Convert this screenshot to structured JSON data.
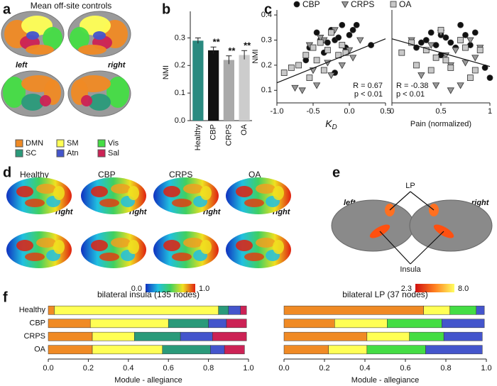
{
  "panel_labels": [
    "a",
    "b",
    "c",
    "d",
    "e",
    "f"
  ],
  "panel_a": {
    "title": "Mean off-site controls",
    "hemispheres": [
      "left",
      "right"
    ],
    "legend": [
      {
        "label": "DMN",
        "color": "#f08a24"
      },
      {
        "label": "SM",
        "color": "#ffff55"
      },
      {
        "label": "Vis",
        "color": "#44dd44"
      },
      {
        "label": "SC",
        "color": "#2a9a7a"
      },
      {
        "label": "Atn",
        "color": "#4455cc"
      },
      {
        "label": "Sal",
        "color": "#cc2255"
      }
    ]
  },
  "panel_d": {
    "groups": [
      "Healthy",
      "CBP",
      "CRPS",
      "OA"
    ],
    "view_label": "right",
    "colorbar": {
      "min": "0.0",
      "max": "1.0"
    }
  },
  "panel_e": {
    "hemispheres": [
      "left",
      "right"
    ],
    "regions": [
      "LP",
      "Insula"
    ],
    "colorbar": {
      "min": "2.3",
      "max": "8.0"
    }
  },
  "chart_data": [
    {
      "type": "bar",
      "ylabel": "NMI",
      "categories": [
        "Healthy",
        "CBP",
        "CRPS",
        "OA"
      ],
      "values": [
        0.29,
        0.255,
        0.22,
        0.238
      ],
      "errors": [
        0.01,
        0.012,
        0.015,
        0.016
      ],
      "colors": [
        "#2a8a80",
        "#111111",
        "#aaaaaa",
        "#cccccc"
      ],
      "significance": [
        null,
        "**",
        "**",
        "**"
      ],
      "ylim": [
        0,
        0.35
      ],
      "yticks": [
        {
          "value": 0,
          "label": "0.0"
        },
        0.1,
        0.2,
        0.3
      ]
    },
    {
      "type": "scatter",
      "ylabel": "NMI",
      "xlabel": {
        "text": "K",
        "subscript": "D"
      },
      "xlim": [
        -1,
        0.5
      ],
      "ylim": [
        0.05,
        0.42
      ],
      "xticks": [
        {
          "value": -1,
          "label": "-1.0"
        },
        -0.5,
        {
          "value": 0,
          "label": "0.0"
        },
        0.5
      ],
      "yticks": [
        0.1,
        0.2,
        0.3,
        0.4
      ],
      "annotations": [
        "R = 0.67",
        "p < 0.01"
      ],
      "annotation_corner": "lower right",
      "fit": {
        "x": [
          -1,
          0.5
        ],
        "y": [
          0.13,
          0.305
        ]
      },
      "series": [
        {
          "name": "CBP",
          "color": "#111111",
          "marker": "circle",
          "x": [
            -0.55,
            -0.45,
            -0.4,
            -0.35,
            -0.3,
            -0.25,
            -0.2,
            -0.15,
            -0.1,
            -0.05,
            0.0,
            0.05,
            0.1,
            0.3,
            -0.6,
            -0.2
          ],
          "values": [
            0.27,
            0.33,
            0.3,
            0.25,
            0.29,
            0.34,
            0.3,
            0.31,
            0.36,
            0.27,
            0.32,
            0.34,
            0.36,
            0.28,
            0.22,
            0.17
          ]
        },
        {
          "name": "CRPS",
          "color": "#999999",
          "marker": "triangle",
          "x": [
            -0.75,
            -0.65,
            -0.55,
            -0.5,
            -0.45,
            -0.35,
            -0.3,
            -0.25,
            -0.2,
            -0.1,
            0.0,
            0.05,
            0.15,
            -0.4
          ],
          "values": [
            0.11,
            0.1,
            0.28,
            0.18,
            0.12,
            0.3,
            0.21,
            0.16,
            0.34,
            0.2,
            0.26,
            0.23,
            0.3,
            0.31
          ]
        },
        {
          "name": "OA",
          "color": "#c8c8c8",
          "marker": "square",
          "x": [
            -0.9,
            -0.8,
            -0.7,
            -0.6,
            -0.5,
            -0.45,
            -0.4,
            -0.3,
            -0.25,
            -0.15,
            -0.1,
            -0.05,
            -0.35,
            -0.55
          ],
          "values": [
            0.17,
            0.19,
            0.2,
            0.24,
            0.27,
            0.22,
            0.29,
            0.26,
            0.33,
            0.24,
            0.28,
            0.25,
            0.18,
            0.15
          ]
        }
      ]
    },
    {
      "type": "scatter",
      "xlabel": {
        "text": "Pain (normalized)"
      },
      "xlim": [
        0,
        1
      ],
      "ylim": [
        0.05,
        0.42
      ],
      "xticks": [
        0,
        0.5,
        1
      ],
      "annotations": [
        "R = -0.38",
        "p < 0.01"
      ],
      "annotation_corner": "lower left",
      "fit": {
        "x": [
          0,
          1
        ],
        "y": [
          0.305,
          0.195
        ]
      },
      "series": [
        {
          "color": "#111111",
          "marker": "circle",
          "x": [
            0.3,
            0.35,
            0.4,
            0.45,
            0.5,
            0.55,
            0.6,
            0.65,
            0.7,
            0.75,
            0.8,
            0.85,
            0.95,
            1.0,
            0.25,
            0.5
          ],
          "values": [
            0.29,
            0.3,
            0.33,
            0.28,
            0.32,
            0.31,
            0.29,
            0.27,
            0.36,
            0.32,
            0.28,
            0.33,
            0.19,
            0.15,
            0.27,
            0.24
          ]
        },
        {
          "color": "#999999",
          "marker": "triangle",
          "x": [
            0.2,
            0.3,
            0.4,
            0.45,
            0.5,
            0.55,
            0.6,
            0.65,
            0.7,
            0.75,
            0.8,
            0.85,
            0.6,
            0.9
          ],
          "values": [
            0.3,
            0.16,
            0.28,
            0.12,
            0.33,
            0.24,
            0.2,
            0.26,
            0.12,
            0.21,
            0.3,
            0.23,
            0.1,
            0.27
          ]
        },
        {
          "color": "#c8c8c8",
          "marker": "square",
          "x": [
            0.1,
            0.2,
            0.25,
            0.35,
            0.45,
            0.5,
            0.55,
            0.6,
            0.7,
            0.75,
            0.8,
            0.85,
            0.4,
            0.9
          ],
          "values": [
            0.25,
            0.29,
            0.2,
            0.26,
            0.23,
            0.34,
            0.22,
            0.19,
            0.3,
            0.27,
            0.15,
            0.18,
            0.18,
            0.26
          ]
        }
      ]
    },
    {
      "type": "stacked_barh",
      "title": "bilateral insula (135 nodes)",
      "xlabel": "Module - allegiance",
      "categories": [
        "Healthy",
        "CBP",
        "CRPS",
        "OA"
      ],
      "xlim": [
        0,
        1
      ],
      "xticks": [
        {
          "value": 0,
          "label": "0.0"
        },
        0.2,
        0.4,
        0.6,
        0.8,
        {
          "value": 1,
          "label": "1.0"
        }
      ],
      "series": [
        {
          "color": "#f08a24",
          "values": [
            0.03,
            0.21,
            0.22,
            0.22
          ]
        },
        {
          "color": "#ffff55",
          "values": [
            0.82,
            0.39,
            0.21,
            0.35
          ]
        },
        {
          "color": "#2a9a7a",
          "values": [
            0.05,
            0.2,
            0.23,
            0.24
          ]
        },
        {
          "color": "#4455cc",
          "values": [
            0.06,
            0.09,
            0.16,
            0.07
          ]
        },
        {
          "color": "#cc2255",
          "values": [
            0.03,
            0.1,
            0.17,
            0.1
          ]
        }
      ]
    },
    {
      "type": "stacked_barh",
      "title": "bilateral LP (37 nodes)",
      "xlabel": "Module - allegiance",
      "xlim": [
        0,
        1
      ],
      "xticks": [
        {
          "value": 0,
          "label": "0.0"
        },
        0.2,
        0.4,
        0.6,
        0.8,
        {
          "value": 1,
          "label": "1.0"
        }
      ],
      "series": [
        {
          "color": "#f08a24",
          "values": [
            0.69,
            0.25,
            0.41,
            0.22
          ]
        },
        {
          "color": "#ffff55",
          "values": [
            0.13,
            0.26,
            0.21,
            0.19
          ]
        },
        {
          "color": "#44dd44",
          "values": [
            0.13,
            0.27,
            0.17,
            0.29
          ]
        },
        {
          "color": "#4455cc",
          "values": [
            0.04,
            0.21,
            0.19,
            0.28
          ]
        }
      ]
    }
  ]
}
